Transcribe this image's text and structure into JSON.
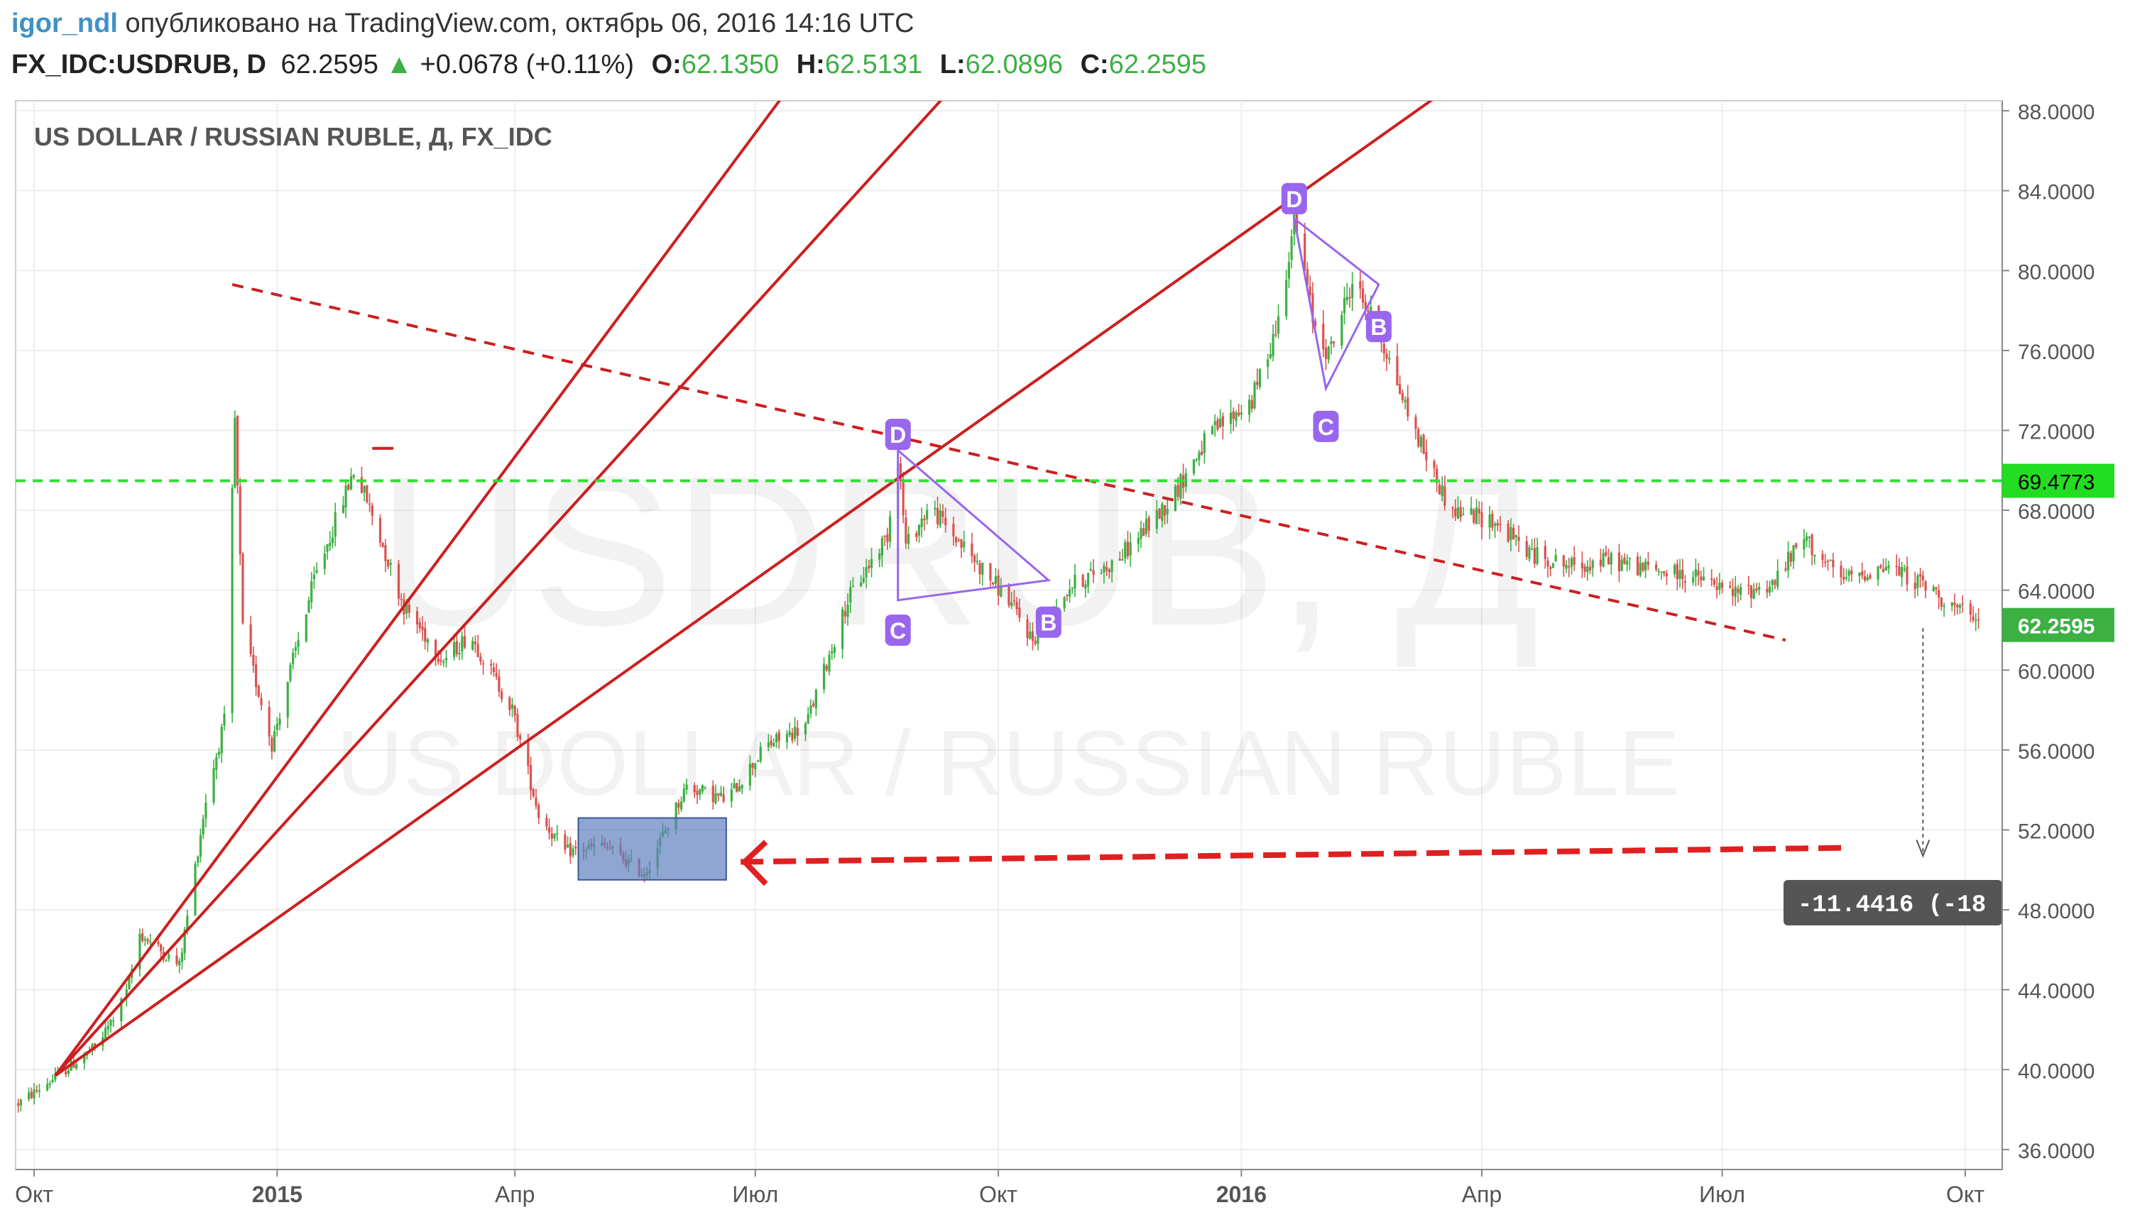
{
  "header": {
    "author": "igor_ndl",
    "published": "опубликовано на TradingView.com, октябрь 06, 2016 14:16 UTC",
    "symbol": "FX_IDC:USDRUB, D",
    "last": "62.2595",
    "change_icon": "triangle-up-icon",
    "change": "+0.0678 (+0.11%)",
    "o_label": "O:",
    "o_value": "62.1350",
    "h_label": "H:",
    "h_value": "62.5131",
    "l_label": "L:",
    "l_value": "62.0896",
    "c_label": "C:",
    "c_value": "62.2595"
  },
  "chart_data": {
    "type": "candlestick",
    "title": "US DOLLAR / RUSSIAN RUBLE, Д, FX_IDC",
    "watermark_symbol": "USDRUB, Д",
    "watermark_name": "US DOLLAR / RUSSIAN RUBLE",
    "x_ticks": [
      {
        "date": "2014-10-01",
        "label": "Окт",
        "bold": false
      },
      {
        "date": "2015-01-01",
        "label": "2015",
        "bold": true
      },
      {
        "date": "2015-04-01",
        "label": "Апр",
        "bold": false
      },
      {
        "date": "2015-07-01",
        "label": "Июл",
        "bold": false
      },
      {
        "date": "2015-10-01",
        "label": "Окт",
        "bold": false
      },
      {
        "date": "2016-01-01",
        "label": "2016",
        "bold": true
      },
      {
        "date": "2016-04-01",
        "label": "Апр",
        "bold": false
      },
      {
        "date": "2016-07-01",
        "label": "Июл",
        "bold": false
      },
      {
        "date": "2016-10-01",
        "label": "Окт",
        "bold": false
      }
    ],
    "x_range": [
      "2014-09-24",
      "2016-10-15"
    ],
    "y_ticks": [
      "36.0000",
      "40.0000",
      "44.0000",
      "48.0000",
      "52.0000",
      "56.0000",
      "60.0000",
      "64.0000",
      "68.0000",
      "72.0000",
      "76.0000",
      "80.0000",
      "84.0000",
      "88.0000"
    ],
    "y_range": [
      35.0,
      88.5
    ],
    "price_line": {
      "value": 69.4773,
      "label": "69.4773",
      "color": "#33dd33"
    },
    "last_price": {
      "value": 62.2595,
      "label": "62.2595",
      "color": "#3cb043"
    },
    "measure_label": "-11.4416 (-18",
    "pattern_labels": [
      {
        "date": "2015-08-24",
        "price": 71.8,
        "text": "D"
      },
      {
        "date": "2015-08-24",
        "price": 62.0,
        "text": "C"
      },
      {
        "date": "2015-10-20",
        "price": 62.4,
        "text": "B"
      },
      {
        "date": "2016-01-21",
        "price": 83.6,
        "text": "D"
      },
      {
        "date": "2016-02-02",
        "price": 72.2,
        "text": "C"
      },
      {
        "date": "2016-02-22",
        "price": 77.2,
        "text": "B"
      }
    ],
    "colors": {
      "up": "#3cb043",
      "down": "#d9534f",
      "trend": "#cc1f1f",
      "pattern": "#9966ee",
      "box": "#5f7fbf"
    },
    "price_path": [
      [
        "2014-09-25",
        38.3
      ],
      [
        "2014-10-10",
        39.7
      ],
      [
        "2014-10-25",
        41.2
      ],
      [
        "2014-11-05",
        43.8
      ],
      [
        "2014-11-10",
        46.8
      ],
      [
        "2014-11-25",
        45.2
      ],
      [
        "2014-12-05",
        53.5
      ],
      [
        "2014-12-12",
        57.4
      ],
      [
        "2014-12-16",
        72.5
      ],
      [
        "2014-12-19",
        62.0
      ],
      [
        "2014-12-30",
        56.3
      ],
      [
        "2015-01-06",
        60.0
      ],
      [
        "2015-01-15",
        64.5
      ],
      [
        "2015-01-30",
        70.0
      ],
      [
        "2015-02-04",
        68.5
      ],
      [
        "2015-02-18",
        63.2
      ],
      [
        "2015-03-05",
        60.5
      ],
      [
        "2015-03-15",
        61.8
      ],
      [
        "2015-03-31",
        58.0
      ],
      [
        "2015-04-10",
        52.8
      ],
      [
        "2015-04-20",
        50.9
      ],
      [
        "2015-05-05",
        51.2
      ],
      [
        "2015-05-20",
        49.8
      ],
      [
        "2015-06-05",
        54.2
      ],
      [
        "2015-06-20",
        53.5
      ],
      [
        "2015-07-05",
        56.2
      ],
      [
        "2015-07-20",
        57.2
      ],
      [
        "2015-08-05",
        63.5
      ],
      [
        "2015-08-20",
        66.8
      ],
      [
        "2015-08-24",
        70.9
      ],
      [
        "2015-08-27",
        66.2
      ],
      [
        "2015-09-05",
        68.2
      ],
      [
        "2015-09-20",
        65.8
      ],
      [
        "2015-10-05",
        63.5
      ],
      [
        "2015-10-14",
        61.5
      ],
      [
        "2015-10-28",
        64.2
      ],
      [
        "2015-11-15",
        65.5
      ],
      [
        "2015-12-05",
        68.5
      ],
      [
        "2015-12-20",
        71.8
      ],
      [
        "2016-01-05",
        73.5
      ],
      [
        "2016-01-15",
        77.5
      ],
      [
        "2016-01-21",
        82.7
      ],
      [
        "2016-01-28",
        77.6
      ],
      [
        "2016-02-03",
        75.8
      ],
      [
        "2016-02-12",
        79.5
      ],
      [
        "2016-02-22",
        77.0
      ],
      [
        "2016-03-05",
        72.5
      ],
      [
        "2016-03-20",
        68.0
      ],
      [
        "2016-04-05",
        67.5
      ],
      [
        "2016-04-20",
        65.8
      ],
      [
        "2016-05-05",
        65.2
      ],
      [
        "2016-05-20",
        65.5
      ],
      [
        "2016-06-05",
        65.0
      ],
      [
        "2016-06-20",
        64.7
      ],
      [
        "2016-07-05",
        63.8
      ],
      [
        "2016-07-20",
        64.3
      ],
      [
        "2016-08-01",
        66.6
      ],
      [
        "2016-08-15",
        64.5
      ],
      [
        "2016-09-01",
        65.2
      ],
      [
        "2016-09-15",
        64.3
      ],
      [
        "2016-10-06",
        62.26
      ]
    ]
  }
}
